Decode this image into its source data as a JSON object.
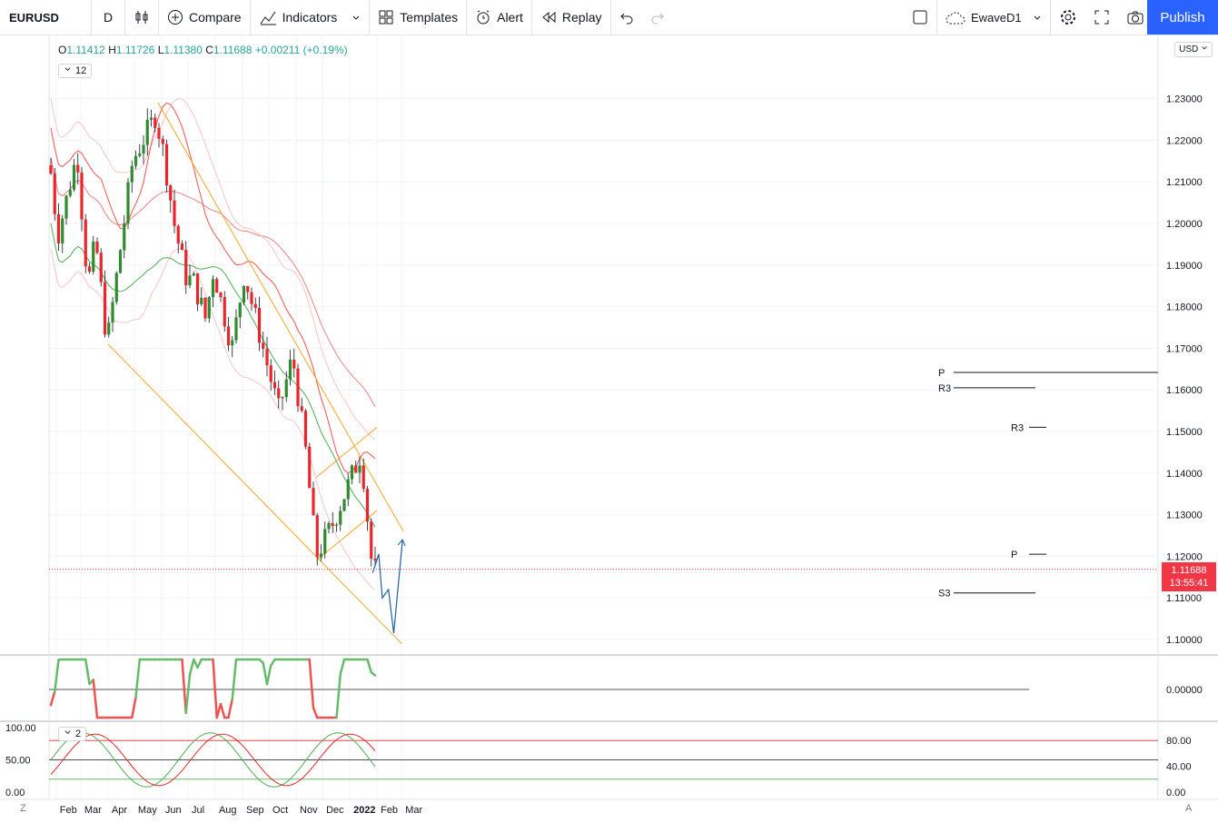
{
  "toolbar": {
    "symbol": "EURUSD",
    "interval": "D",
    "compare": "Compare",
    "indicators": "Indicators",
    "templates": "Templates",
    "alert": "Alert",
    "replay": "Replay",
    "layout_name": "EwaveD1",
    "publish": "Publish"
  },
  "legend": {
    "open_label": "O",
    "open": "1.11412",
    "high_label": "H",
    "high": "1.11726",
    "low_label": "L",
    "low": "1.11380",
    "close_label": "C",
    "close": "1.11688",
    "change": "+0.00211 (+0.19%)",
    "indicators_count": "12",
    "pane_count": "2"
  },
  "currency": "USD",
  "last_price": "1.11688",
  "countdown": "13:55:41",
  "scale_mode_left": "Z",
  "scale_mode_right": "A",
  "colors": {
    "up": "#26a69a",
    "up_alt": "#2e8b2e",
    "down": "#e8262b",
    "accent": "#2962ff",
    "trend": "#f5a623",
    "forecast": "#1f5fa6"
  },
  "chart_data": {
    "type": "candlestick",
    "title": "",
    "x_ticks": [
      "Feb",
      "Mar",
      "Apr",
      "May",
      "Jun",
      "Jul",
      "Aug",
      "Sep",
      "Oct",
      "Nov",
      "Dec",
      "2022",
      "Feb",
      "Mar"
    ],
    "y_ticks": [
      "1.10000",
      "1.11000",
      "1.12000",
      "1.13000",
      "1.14000",
      "1.15000",
      "1.16000",
      "1.17000",
      "1.18000",
      "1.19000",
      "1.20000",
      "1.21000",
      "1.22000",
      "1.23000"
    ],
    "ylim": [
      1.095,
      1.243
    ],
    "close_path": [
      [
        "2021-01-25",
        1.214
      ],
      [
        "2021-02-03",
        1.197
      ],
      [
        "2021-02-25",
        1.217
      ],
      [
        "2021-03-09",
        1.185
      ],
      [
        "2021-03-18",
        1.196
      ],
      [
        "2021-03-31",
        1.171
      ],
      [
        "2021-04-29",
        1.215
      ],
      [
        "2021-05-25",
        1.226
      ],
      [
        "2021-06-04",
        1.216
      ],
      [
        "2021-06-16",
        1.199
      ],
      [
        "2021-06-30",
        1.186
      ],
      [
        "2021-07-06",
        1.187
      ],
      [
        "2021-07-21",
        1.177
      ],
      [
        "2021-07-30",
        1.189
      ],
      [
        "2021-08-20",
        1.17
      ],
      [
        "2021-09-03",
        1.188
      ],
      [
        "2021-09-22",
        1.172
      ],
      [
        "2021-10-12",
        1.155
      ],
      [
        "2021-10-28",
        1.168
      ],
      [
        "2021-11-12",
        1.145
      ],
      [
        "2021-11-24",
        1.12
      ],
      [
        "2021-12-13",
        1.128
      ],
      [
        "2022-01-14",
        1.145
      ],
      [
        "2022-01-27",
        1.116
      ],
      [
        "2022-01-31",
        1.1169
      ]
    ],
    "horizontal_levels": [
      {
        "label": "P",
        "value": 1.1642
      },
      {
        "label": "R3",
        "value": 1.1605
      },
      {
        "label": "R3",
        "value": 1.151
      },
      {
        "label": "P",
        "value": 1.1205
      },
      {
        "label": "S3",
        "value": 1.1112
      }
    ],
    "forecast_path": [
      [
        "2022-01-27",
        1.116
      ],
      [
        "2022-02-03",
        1.1205
      ],
      [
        "2022-02-07",
        1.11
      ],
      [
        "2022-02-14",
        1.112
      ],
      [
        "2022-02-20",
        1.1015
      ],
      [
        "2022-03-02",
        1.124
      ]
    ],
    "oscillator_1": {
      "ylim": [
        -0.004,
        0.004
      ],
      "y_ticks": [
        "0.00000"
      ]
    },
    "oscillator_2": {
      "ylim": [
        0,
        100
      ],
      "left_ticks": [
        "100.00",
        "50.00",
        "0.00"
      ],
      "right_ticks": [
        "80.00",
        "40.00",
        "0.00"
      ]
    }
  }
}
